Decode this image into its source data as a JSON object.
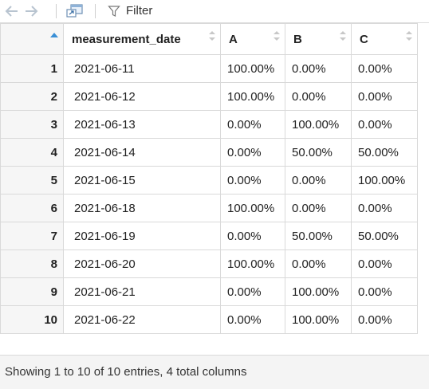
{
  "toolbar": {
    "back_icon": "arrow-left-icon",
    "forward_icon": "arrow-right-icon",
    "popout_icon": "popout-window-icon",
    "filter_icon": "funnel-icon",
    "filter_label": "Filter"
  },
  "table": {
    "columns": [
      "measurement_date",
      "A",
      "B",
      "C"
    ],
    "sort_indicator": "ascending",
    "rows": [
      {
        "n": "1",
        "measurement_date": "2021-06-11",
        "A": "100.00%",
        "B": "0.00%",
        "C": "0.00%"
      },
      {
        "n": "2",
        "measurement_date": "2021-06-12",
        "A": "100.00%",
        "B": "0.00%",
        "C": "0.00%"
      },
      {
        "n": "3",
        "measurement_date": "2021-06-13",
        "A": "0.00%",
        "B": "100.00%",
        "C": "0.00%"
      },
      {
        "n": "4",
        "measurement_date": "2021-06-14",
        "A": "0.00%",
        "B": "50.00%",
        "C": "50.00%"
      },
      {
        "n": "5",
        "measurement_date": "2021-06-15",
        "A": "0.00%",
        "B": "0.00%",
        "C": "100.00%"
      },
      {
        "n": "6",
        "measurement_date": "2021-06-18",
        "A": "100.00%",
        "B": "0.00%",
        "C": "0.00%"
      },
      {
        "n": "7",
        "measurement_date": "2021-06-19",
        "A": "0.00%",
        "B": "50.00%",
        "C": "50.00%"
      },
      {
        "n": "8",
        "measurement_date": "2021-06-20",
        "A": "100.00%",
        "B": "0.00%",
        "C": "0.00%"
      },
      {
        "n": "9",
        "measurement_date": "2021-06-21",
        "A": "0.00%",
        "B": "100.00%",
        "C": "0.00%"
      },
      {
        "n": "10",
        "measurement_date": "2021-06-22",
        "A": "0.00%",
        "B": "100.00%",
        "C": "0.00%"
      }
    ]
  },
  "footer": {
    "status": "Showing 1 to 10 of 10 entries, 4 total columns"
  },
  "colors": {
    "sort_active": "#3a8fd6",
    "sort_inactive": "#c8c8c8",
    "row_header_bg": "#f6f6f6"
  }
}
